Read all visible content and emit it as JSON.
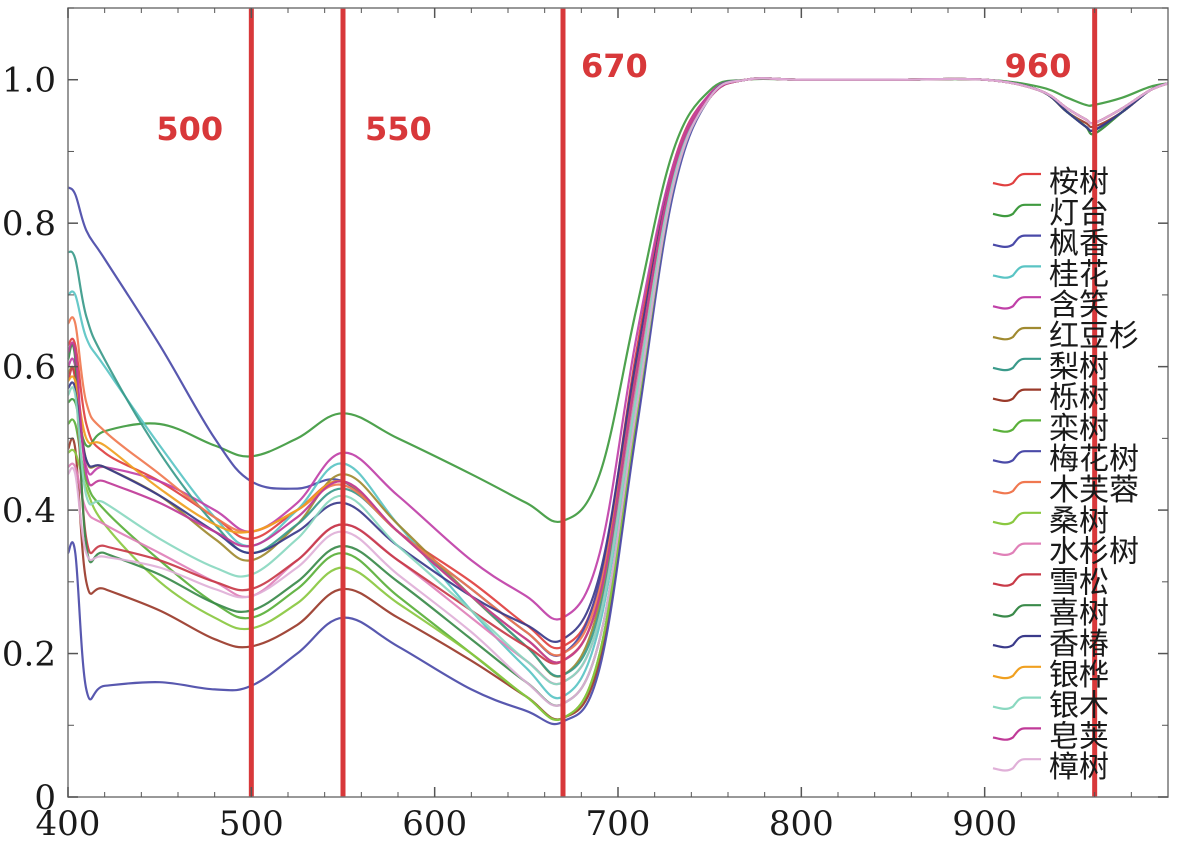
{
  "chart_data": {
    "type": "line",
    "title": "",
    "xlabel": "",
    "ylabel": "",
    "xlim": [
      400,
      1000
    ],
    "ylim": [
      0,
      1.1
    ],
    "x_ticks": [
      400,
      500,
      600,
      700,
      800,
      900
    ],
    "x_tick_labels": [
      "400",
      "500",
      "600",
      "700",
      "800",
      "900"
    ],
    "y_ticks": [
      0,
      0.2,
      0.4,
      0.6,
      0.8,
      1.0
    ],
    "y_tick_labels": [
      "0",
      "0.2",
      "0.4",
      "0.6",
      "0.8",
      "1.0"
    ],
    "legend_position": "right",
    "grid": false,
    "vertical_lines": [
      {
        "x": 500,
        "label": "500",
        "color": "#d8383a"
      },
      {
        "x": 550,
        "label": "550",
        "color": "#d8383a"
      },
      {
        "x": 670,
        "label": "670",
        "color": "#d8383a"
      },
      {
        "x": 960,
        "label": "960",
        "color": "#d8383a"
      }
    ],
    "x": [
      400,
      404,
      410,
      420,
      450,
      480,
      500,
      525,
      550,
      580,
      620,
      650,
      670,
      690,
      710,
      730,
      750,
      770,
      800,
      850,
      900,
      930,
      945,
      955,
      960,
      975,
      990,
      1000
    ],
    "series": [
      {
        "name": "桉树",
        "color": "#e04040",
        "values": [
          0.63,
          0.63,
          0.52,
          0.48,
          0.44,
          0.39,
          0.36,
          0.4,
          0.44,
          0.37,
          0.3,
          0.24,
          0.21,
          0.3,
          0.62,
          0.88,
          0.98,
          1.0,
          1.0,
          1.0,
          1.0,
          0.985,
          0.96,
          0.945,
          0.94,
          0.96,
          0.985,
          0.995
        ]
      },
      {
        "name": "灯台",
        "color": "#3f9a3f",
        "values": [
          0.55,
          0.55,
          0.49,
          0.51,
          0.52,
          0.49,
          0.475,
          0.5,
          0.535,
          0.5,
          0.45,
          0.41,
          0.385,
          0.45,
          0.68,
          0.9,
          0.985,
          1.0,
          1.0,
          1.0,
          1.0,
          0.99,
          0.975,
          0.965,
          0.965,
          0.975,
          0.99,
          0.995
        ]
      },
      {
        "name": "枫香",
        "color": "#4a4aa8",
        "values": [
          0.85,
          0.84,
          0.79,
          0.75,
          0.63,
          0.5,
          0.44,
          0.43,
          0.44,
          0.37,
          0.29,
          0.23,
          0.2,
          0.3,
          0.6,
          0.87,
          0.975,
          1.0,
          1.0,
          1.0,
          1.0,
          0.985,
          0.955,
          0.935,
          0.93,
          0.955,
          0.985,
          0.995
        ]
      },
      {
        "name": "桂花",
        "color": "#5ac4c4",
        "values": [
          0.7,
          0.7,
          0.64,
          0.6,
          0.49,
          0.39,
          0.35,
          0.4,
          0.465,
          0.38,
          0.26,
          0.18,
          0.14,
          0.24,
          0.56,
          0.86,
          0.975,
          1.0,
          1.0,
          1.0,
          1.0,
          0.985,
          0.96,
          0.945,
          0.94,
          0.96,
          0.985,
          0.995
        ]
      },
      {
        "name": "含笑",
        "color": "#c040a8",
        "values": [
          0.6,
          0.6,
          0.46,
          0.46,
          0.44,
          0.4,
          0.37,
          0.41,
          0.48,
          0.42,
          0.33,
          0.28,
          0.25,
          0.34,
          0.64,
          0.88,
          0.98,
          1.0,
          1.0,
          1.0,
          1.0,
          0.985,
          0.96,
          0.945,
          0.94,
          0.96,
          0.985,
          0.995
        ]
      },
      {
        "name": "红豆杉",
        "color": "#a08a30",
        "values": [
          0.59,
          0.59,
          0.47,
          0.46,
          0.42,
          0.36,
          0.33,
          0.38,
          0.45,
          0.38,
          0.28,
          0.21,
          0.17,
          0.27,
          0.58,
          0.86,
          0.975,
          1.0,
          1.0,
          1.0,
          1.0,
          0.985,
          0.96,
          0.945,
          0.94,
          0.96,
          0.985,
          0.995
        ]
      },
      {
        "name": "梨树",
        "color": "#3a9a8a",
        "values": [
          0.76,
          0.75,
          0.67,
          0.61,
          0.48,
          0.38,
          0.34,
          0.38,
          0.43,
          0.37,
          0.28,
          0.21,
          0.17,
          0.26,
          0.57,
          0.86,
          0.975,
          1.0,
          1.0,
          1.0,
          1.0,
          0.985,
          0.955,
          0.935,
          0.93,
          0.955,
          0.985,
          0.995
        ]
      },
      {
        "name": "栎树",
        "color": "#9a3a2a",
        "values": [
          0.485,
          0.485,
          0.3,
          0.29,
          0.26,
          0.22,
          0.21,
          0.24,
          0.29,
          0.25,
          0.19,
          0.14,
          0.11,
          0.19,
          0.52,
          0.85,
          0.975,
          1.0,
          1.0,
          1.0,
          1.0,
          0.985,
          0.955,
          0.94,
          0.935,
          0.955,
          0.985,
          0.995
        ]
      },
      {
        "name": "栾树",
        "color": "#5ab03a",
        "values": [
          0.52,
          0.52,
          0.44,
          0.4,
          0.33,
          0.27,
          0.25,
          0.29,
          0.34,
          0.28,
          0.2,
          0.14,
          0.11,
          0.2,
          0.53,
          0.85,
          0.975,
          1.0,
          1.0,
          1.0,
          1.0,
          0.985,
          0.955,
          0.935,
          0.925,
          0.955,
          0.985,
          0.995
        ]
      },
      {
        "name": "梅花树",
        "color": "#4a4aa8",
        "values": [
          0.34,
          0.34,
          0.15,
          0.155,
          0.16,
          0.15,
          0.155,
          0.2,
          0.25,
          0.21,
          0.15,
          0.12,
          0.105,
          0.18,
          0.51,
          0.84,
          0.975,
          1.0,
          1.0,
          1.0,
          1.0,
          0.985,
          0.955,
          0.935,
          0.93,
          0.955,
          0.985,
          0.995
        ]
      },
      {
        "name": "木芙蓉",
        "color": "#f07850",
        "values": [
          0.66,
          0.66,
          0.55,
          0.51,
          0.45,
          0.39,
          0.37,
          0.4,
          0.435,
          0.37,
          0.29,
          0.23,
          0.2,
          0.29,
          0.6,
          0.87,
          0.975,
          1.0,
          1.0,
          1.0,
          1.0,
          0.985,
          0.96,
          0.945,
          0.94,
          0.96,
          0.985,
          0.995
        ]
      },
      {
        "name": "桑树",
        "color": "#8ac840",
        "values": [
          0.48,
          0.48,
          0.43,
          0.38,
          0.3,
          0.25,
          0.235,
          0.27,
          0.32,
          0.27,
          0.2,
          0.14,
          0.11,
          0.2,
          0.53,
          0.85,
          0.975,
          1.0,
          1.0,
          1.0,
          1.0,
          0.985,
          0.955,
          0.935,
          0.925,
          0.955,
          0.985,
          0.995
        ]
      },
      {
        "name": "水杉树",
        "color": "#e080b8",
        "values": [
          0.46,
          0.46,
          0.4,
          0.38,
          0.34,
          0.3,
          0.28,
          0.33,
          0.38,
          0.33,
          0.25,
          0.19,
          0.16,
          0.25,
          0.57,
          0.86,
          0.975,
          1.0,
          1.0,
          1.0,
          1.0,
          0.985,
          0.96,
          0.945,
          0.94,
          0.96,
          0.985,
          0.995
        ]
      },
      {
        "name": "雪松",
        "color": "#c83a48",
        "values": [
          0.58,
          0.58,
          0.36,
          0.35,
          0.33,
          0.3,
          0.29,
          0.33,
          0.38,
          0.33,
          0.26,
          0.21,
          0.19,
          0.28,
          0.59,
          0.87,
          0.975,
          1.0,
          1.0,
          1.0,
          1.0,
          0.985,
          0.96,
          0.945,
          0.94,
          0.96,
          0.985,
          0.995
        ]
      },
      {
        "name": "喜树",
        "color": "#3a8a4a",
        "values": [
          0.61,
          0.61,
          0.35,
          0.34,
          0.31,
          0.27,
          0.26,
          0.3,
          0.35,
          0.3,
          0.22,
          0.16,
          0.13,
          0.22,
          0.54,
          0.85,
          0.975,
          1.0,
          1.0,
          1.0,
          1.0,
          0.985,
          0.955,
          0.935,
          0.925,
          0.955,
          0.985,
          0.995
        ]
      },
      {
        "name": "香椿",
        "color": "#3a3a8a",
        "values": [
          0.57,
          0.57,
          0.47,
          0.46,
          0.42,
          0.37,
          0.34,
          0.37,
          0.41,
          0.35,
          0.28,
          0.24,
          0.22,
          0.31,
          0.61,
          0.87,
          0.975,
          1.0,
          1.0,
          1.0,
          1.0,
          0.985,
          0.955,
          0.935,
          0.93,
          0.955,
          0.985,
          0.995
        ]
      },
      {
        "name": "银桦",
        "color": "#f0a020",
        "values": [
          0.58,
          0.58,
          0.5,
          0.49,
          0.43,
          0.38,
          0.37,
          0.4,
          0.44,
          0.37,
          0.28,
          0.22,
          0.19,
          0.28,
          0.59,
          0.87,
          0.975,
          1.0,
          1.0,
          1.0,
          1.0,
          0.985,
          0.96,
          0.945,
          0.94,
          0.96,
          0.985,
          0.995
        ]
      },
      {
        "name": "银木",
        "color": "#8ad8c0",
        "values": [
          0.56,
          0.56,
          0.42,
          0.41,
          0.36,
          0.32,
          0.31,
          0.36,
          0.42,
          0.35,
          0.26,
          0.19,
          0.16,
          0.25,
          0.56,
          0.86,
          0.975,
          1.0,
          1.0,
          1.0,
          1.0,
          0.985,
          0.96,
          0.945,
          0.94,
          0.96,
          0.985,
          0.995
        ]
      },
      {
        "name": "皂荚",
        "color": "#c03a98",
        "values": [
          0.62,
          0.62,
          0.45,
          0.44,
          0.41,
          0.37,
          0.35,
          0.39,
          0.44,
          0.37,
          0.28,
          0.22,
          0.19,
          0.28,
          0.59,
          0.87,
          0.975,
          1.0,
          1.0,
          1.0,
          1.0,
          0.985,
          0.96,
          0.945,
          0.94,
          0.96,
          0.985,
          0.995
        ]
      },
      {
        "name": "樟树",
        "color": "#e0b0d8",
        "values": [
          0.45,
          0.45,
          0.34,
          0.335,
          0.32,
          0.29,
          0.28,
          0.32,
          0.37,
          0.31,
          0.23,
          0.16,
          0.13,
          0.22,
          0.54,
          0.85,
          0.975,
          1.0,
          1.0,
          1.0,
          1.0,
          0.985,
          0.96,
          0.945,
          0.94,
          0.96,
          0.985,
          0.995
        ]
      }
    ]
  }
}
